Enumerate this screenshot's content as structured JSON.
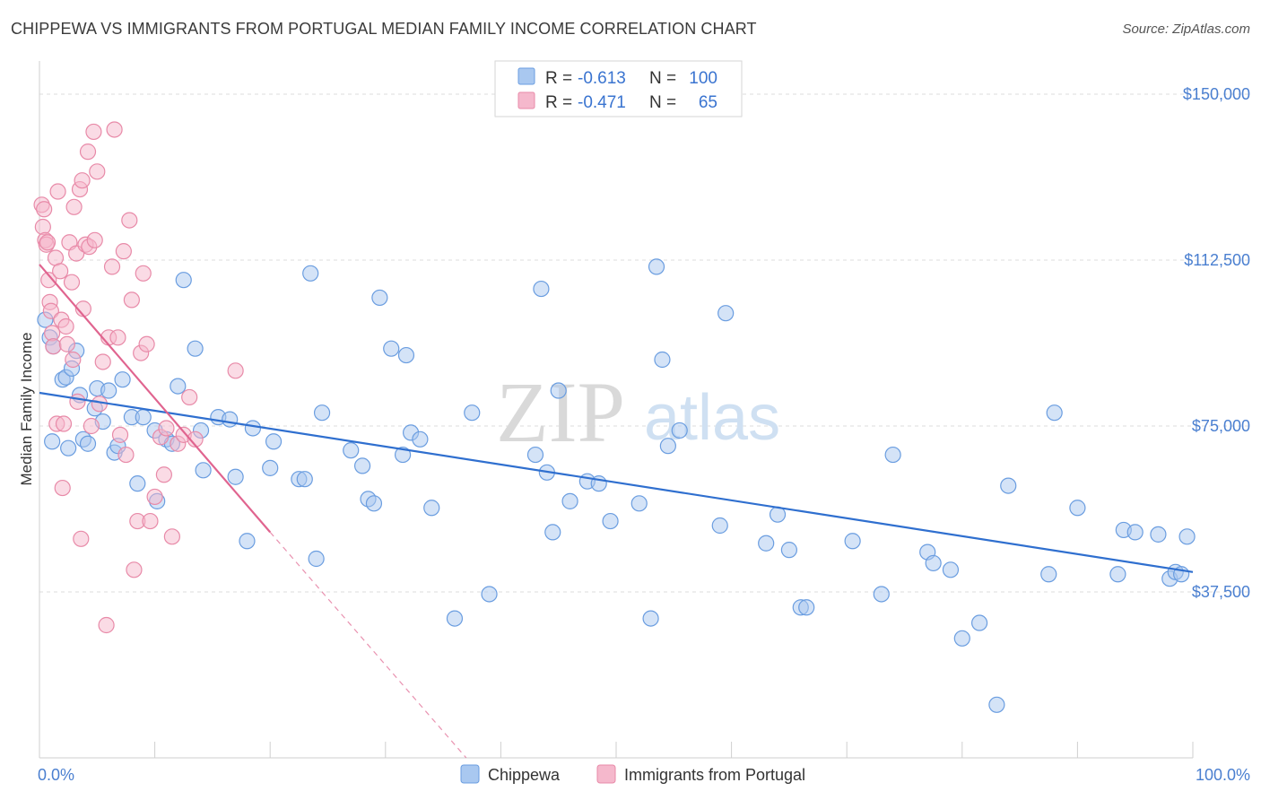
{
  "header": {
    "title": "CHIPPEWA VS IMMIGRANTS FROM PORTUGAL MEDIAN FAMILY INCOME CORRELATION CHART",
    "source": "Source: ZipAtlas.com"
  },
  "watermark": {
    "zip": "ZIP",
    "atlas": "atlas"
  },
  "legend": {
    "rows": [
      {
        "r_label": "R =",
        "r_value": "-0.613",
        "n_label": "N =",
        "n_value": "100",
        "color": "#a9c8f0"
      },
      {
        "r_label": "R =",
        "r_value": "-0.471",
        "n_label": "N =",
        "n_value": "65",
        "color": "#f5b8cc"
      }
    ]
  },
  "chart_data": {
    "type": "scatter",
    "title": "CHIPPEWA VS IMMIGRANTS FROM PORTUGAL MEDIAN FAMILY INCOME CORRELATION CHART",
    "xlabel": "",
    "ylabel": "Median Family Income",
    "xlim": [
      0,
      100
    ],
    "ylim": [
      0,
      157500
    ],
    "x_ticks": [
      "0.0%",
      "100.0%"
    ],
    "y_ticks": [
      {
        "value": 37500,
        "label": "$37,500"
      },
      {
        "value": 75000,
        "label": "$75,000"
      },
      {
        "value": 112500,
        "label": "$112,500"
      },
      {
        "value": 150000,
        "label": "$150,000"
      }
    ],
    "grid": true,
    "legend_position": "bottom",
    "series": [
      {
        "name": "Chippewa",
        "color": "#a9c8f0",
        "stroke": "#6a9de0",
        "line_color": "#2f6fcf",
        "trend": {
          "x0": 0,
          "y0": 82500,
          "x1": 100,
          "y1": 42000,
          "dashed_to": null
        },
        "points": [
          [
            0.5,
            99000
          ],
          [
            0.9,
            95000
          ],
          [
            1.2,
            93000
          ],
          [
            2.0,
            85500
          ],
          [
            2.3,
            86000
          ],
          [
            2.8,
            88000
          ],
          [
            1.1,
            71500
          ],
          [
            2.5,
            70000
          ],
          [
            3.2,
            92000
          ],
          [
            3.8,
            72000
          ],
          [
            3.5,
            82000
          ],
          [
            4.2,
            71000
          ],
          [
            4.8,
            79000
          ],
          [
            5.0,
            83500
          ],
          [
            5.5,
            76000
          ],
          [
            6.0,
            83000
          ],
          [
            6.5,
            69000
          ],
          [
            6.8,
            70500
          ],
          [
            7.2,
            85500
          ],
          [
            8.0,
            77000
          ],
          [
            8.5,
            62000
          ],
          [
            9.0,
            77000
          ],
          [
            10.0,
            74000
          ],
          [
            10.2,
            58000
          ],
          [
            11.0,
            72000
          ],
          [
            11.5,
            71000
          ],
          [
            12.0,
            84000
          ],
          [
            12.5,
            108000
          ],
          [
            13.5,
            92500
          ],
          [
            14.0,
            74000
          ],
          [
            14.2,
            65000
          ],
          [
            15.5,
            77000
          ],
          [
            16.5,
            76500
          ],
          [
            17.0,
            63500
          ],
          [
            18.0,
            49000
          ],
          [
            18.5,
            74500
          ],
          [
            20.0,
            65500
          ],
          [
            20.3,
            71500
          ],
          [
            22.5,
            63000
          ],
          [
            23.0,
            63000
          ],
          [
            23.5,
            109500
          ],
          [
            24.0,
            45000
          ],
          [
            24.5,
            78000
          ],
          [
            27.0,
            69500
          ],
          [
            28.0,
            66000
          ],
          [
            28.5,
            58500
          ],
          [
            29.0,
            57500
          ],
          [
            29.5,
            104000
          ],
          [
            30.5,
            92500
          ],
          [
            31.5,
            68500
          ],
          [
            31.8,
            91000
          ],
          [
            32.2,
            73500
          ],
          [
            33.0,
            72000
          ],
          [
            34.0,
            56500
          ],
          [
            36.0,
            31500
          ],
          [
            37.5,
            78000
          ],
          [
            39.0,
            37000
          ],
          [
            43.0,
            68500
          ],
          [
            43.5,
            106000
          ],
          [
            44.0,
            64500
          ],
          [
            44.5,
            51000
          ],
          [
            45.0,
            83000
          ],
          [
            46.0,
            58000
          ],
          [
            47.5,
            62500
          ],
          [
            48.5,
            62000
          ],
          [
            49.5,
            53500
          ],
          [
            52.0,
            57500
          ],
          [
            53.0,
            31500
          ],
          [
            53.5,
            111000
          ],
          [
            54.0,
            90000
          ],
          [
            54.5,
            70500
          ],
          [
            55.5,
            74000
          ],
          [
            59.0,
            52500
          ],
          [
            59.5,
            100500
          ],
          [
            63.0,
            48500
          ],
          [
            64.0,
            55000
          ],
          [
            65.0,
            47000
          ],
          [
            66.0,
            34000
          ],
          [
            66.5,
            34000
          ],
          [
            70.5,
            49000
          ],
          [
            73.0,
            37000
          ],
          [
            74.0,
            68500
          ],
          [
            77.0,
            46500
          ],
          [
            77.5,
            44000
          ],
          [
            79.0,
            42500
          ],
          [
            80.0,
            27000
          ],
          [
            81.5,
            30500
          ],
          [
            83.0,
            12000
          ],
          [
            84.0,
            61500
          ],
          [
            87.5,
            41500
          ],
          [
            88.0,
            78000
          ],
          [
            90.0,
            56500
          ],
          [
            93.5,
            41500
          ],
          [
            94.0,
            51500
          ],
          [
            95.0,
            51000
          ],
          [
            97.0,
            50500
          ],
          [
            98.0,
            40500
          ],
          [
            98.5,
            42000
          ],
          [
            99.0,
            41500
          ],
          [
            99.5,
            50000
          ]
        ]
      },
      {
        "name": "Immigrants from Portugal",
        "color": "#f5b8cc",
        "stroke": "#e88aa8",
        "line_color": "#e0648f",
        "trend": {
          "x0": 0,
          "y0": 111500,
          "x1": 20,
          "y1": 51000,
          "dashed_to": [
            37,
            0
          ]
        },
        "points": [
          [
            0.2,
            125000
          ],
          [
            0.3,
            120000
          ],
          [
            0.4,
            124000
          ],
          [
            0.5,
            117000
          ],
          [
            0.6,
            116000
          ],
          [
            0.7,
            116500
          ],
          [
            0.8,
            108000
          ],
          [
            0.9,
            103000
          ],
          [
            1.0,
            101000
          ],
          [
            1.1,
            96000
          ],
          [
            1.2,
            93000
          ],
          [
            1.4,
            113000
          ],
          [
            1.5,
            75500
          ],
          [
            1.6,
            128000
          ],
          [
            1.8,
            110000
          ],
          [
            1.9,
            99000
          ],
          [
            2.0,
            61000
          ],
          [
            2.1,
            75500
          ],
          [
            2.3,
            97500
          ],
          [
            2.4,
            93500
          ],
          [
            2.6,
            116500
          ],
          [
            2.8,
            107500
          ],
          [
            2.9,
            90000
          ],
          [
            3.0,
            124500
          ],
          [
            3.2,
            114000
          ],
          [
            3.3,
            80500
          ],
          [
            3.5,
            128500
          ],
          [
            3.6,
            49500
          ],
          [
            3.7,
            130500
          ],
          [
            3.8,
            101500
          ],
          [
            4.0,
            116000
          ],
          [
            4.2,
            137000
          ],
          [
            4.3,
            115500
          ],
          [
            4.5,
            75000
          ],
          [
            4.7,
            141500
          ],
          [
            4.8,
            117000
          ],
          [
            5.0,
            132500
          ],
          [
            5.2,
            80000
          ],
          [
            5.5,
            89500
          ],
          [
            5.8,
            30000
          ],
          [
            6.0,
            95000
          ],
          [
            6.3,
            111000
          ],
          [
            6.5,
            142000
          ],
          [
            6.8,
            95000
          ],
          [
            7.0,
            73000
          ],
          [
            7.3,
            114500
          ],
          [
            7.5,
            68500
          ],
          [
            7.8,
            121500
          ],
          [
            8.0,
            103500
          ],
          [
            8.2,
            42500
          ],
          [
            8.5,
            53500
          ],
          [
            8.8,
            91500
          ],
          [
            9.0,
            109500
          ],
          [
            9.3,
            93500
          ],
          [
            9.6,
            53500
          ],
          [
            10.0,
            59000
          ],
          [
            10.5,
            72500
          ],
          [
            10.8,
            64000
          ],
          [
            11.0,
            74500
          ],
          [
            11.5,
            50000
          ],
          [
            12.0,
            71000
          ],
          [
            12.5,
            73000
          ],
          [
            13.0,
            81500
          ],
          [
            13.5,
            72000
          ],
          [
            17.0,
            87500
          ]
        ]
      }
    ]
  }
}
